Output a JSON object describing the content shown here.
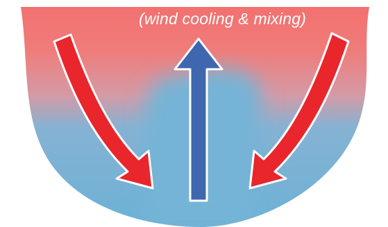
{
  "caption": "(wind cooling & mixing)",
  "colors": {
    "warm_surface": "#f07a78",
    "cool_deep": "#6fb3d6",
    "downwelling_arrow": "#e8262c",
    "upwelling_arrow": "#3f67b0",
    "arrow_outline": "#ffffff"
  },
  "arrows": [
    {
      "name": "left-downwelling-arrow",
      "direction": "down-right"
    },
    {
      "name": "center-upwelling-arrow",
      "direction": "up"
    },
    {
      "name": "right-downwelling-arrow",
      "direction": "down-left"
    }
  ]
}
